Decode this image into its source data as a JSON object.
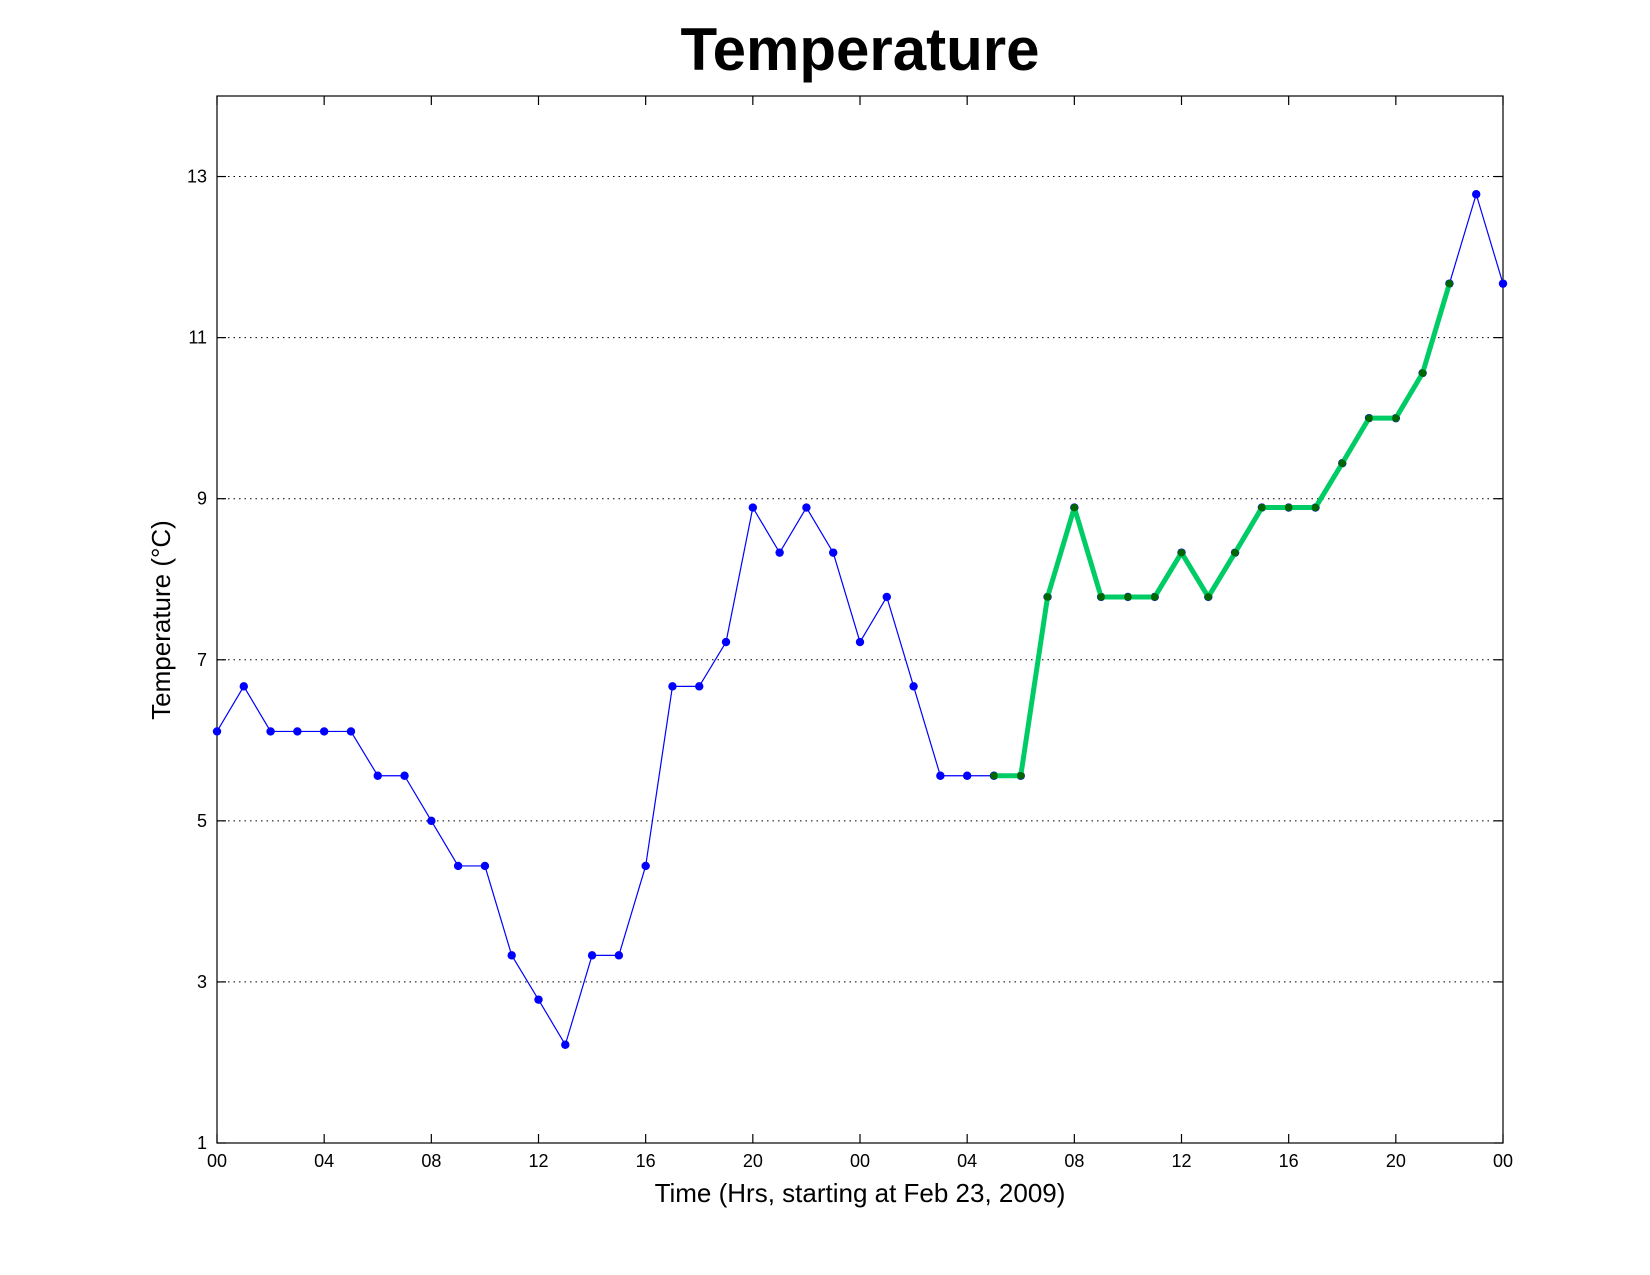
{
  "chart_data": {
    "type": "line",
    "title": "Temperature",
    "xlabel": "Time (Hrs, starting at Feb 23, 2009)",
    "ylabel": "Temperature (°C)",
    "xlim": [
      0,
      48
    ],
    "ylim": [
      1,
      14
    ],
    "x_tick_values": [
      0,
      4,
      8,
      12,
      16,
      20,
      24,
      28,
      32,
      36,
      40,
      44,
      48
    ],
    "x_tick_labels": [
      "00",
      "04",
      "08",
      "12",
      "16",
      "20",
      "00",
      "04",
      "08",
      "12",
      "16",
      "20",
      "00"
    ],
    "y_ticks": [
      1,
      3,
      5,
      7,
      9,
      11,
      13
    ],
    "grid": "horizontal-dotted",
    "series": [
      {
        "color": "#0000ff",
        "marker_color": "#0000ff",
        "x": [
          0,
          1,
          2,
          3,
          4,
          5,
          6,
          7,
          8,
          9,
          10,
          11,
          12,
          13,
          14,
          15,
          16,
          17,
          18,
          19,
          20,
          21,
          22,
          23,
          24,
          25,
          26,
          27,
          28,
          29,
          30,
          31,
          32,
          33,
          34,
          35,
          36,
          37,
          38,
          39,
          40,
          41,
          42,
          43,
          44,
          45,
          46,
          47,
          48
        ],
        "y": [
          6.11,
          6.67,
          6.11,
          6.11,
          6.11,
          6.11,
          5.56,
          5.56,
          5.0,
          4.44,
          4.44,
          3.33,
          2.78,
          2.22,
          3.33,
          3.33,
          4.44,
          6.67,
          6.67,
          7.22,
          8.89,
          8.33,
          8.89,
          8.33,
          7.22,
          7.78,
          6.67,
          5.56,
          5.56,
          5.56,
          5.56,
          7.78,
          8.89,
          7.78,
          7.78,
          7.78,
          8.33,
          7.78,
          8.33,
          8.89,
          8.89,
          8.89,
          9.44,
          10.0,
          10.0,
          10.56,
          11.67,
          12.78,
          11.67
        ]
      },
      {
        "color": "#00cc66",
        "marker_color": "#006600",
        "x": [
          29,
          30,
          31,
          32,
          33,
          34,
          35,
          36,
          37,
          38,
          39,
          40,
          41,
          42,
          43,
          44,
          45,
          46
        ],
        "y": [
          5.56,
          5.56,
          7.78,
          8.89,
          7.78,
          7.78,
          7.78,
          8.33,
          7.78,
          8.33,
          8.89,
          8.89,
          8.89,
          9.44,
          10.0,
          10.0,
          10.56,
          11.67
        ]
      }
    ]
  }
}
